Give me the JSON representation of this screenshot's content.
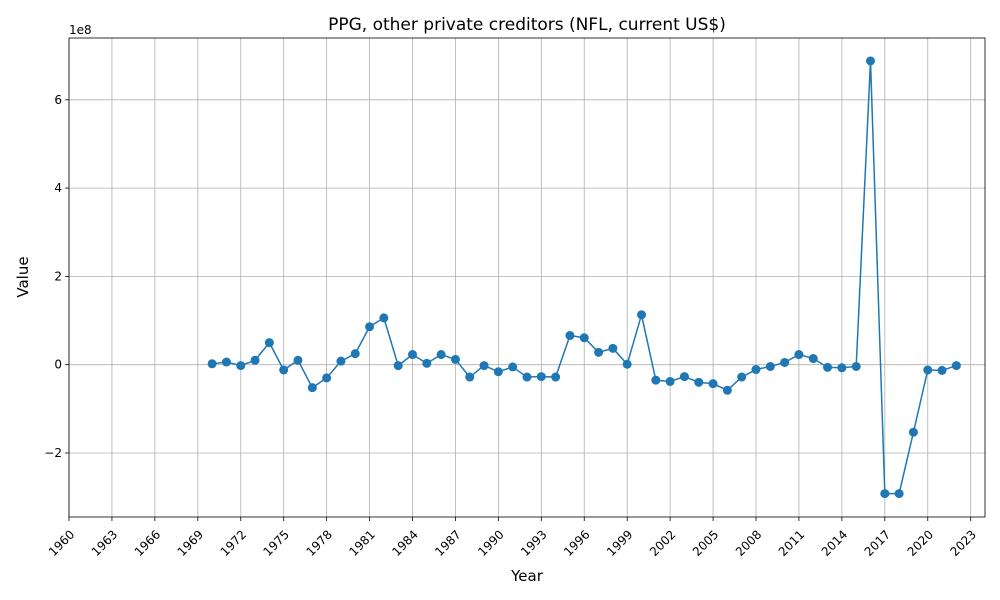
{
  "chart_data": {
    "type": "line",
    "title": "PPG, other private creditors (NFL, current US$)",
    "xlabel": "Year",
    "ylabel": "Value",
    "offset_text": "1e8",
    "xlim": [
      1960,
      2024
    ],
    "ylim": [
      -3.45,
      7.4
    ],
    "x_ticks": [
      1960,
      1963,
      1966,
      1969,
      1972,
      1975,
      1978,
      1981,
      1984,
      1987,
      1990,
      1993,
      1996,
      1999,
      2002,
      2005,
      2008,
      2011,
      2014,
      2017,
      2020,
      2023
    ],
    "y_ticks": [
      -2,
      0,
      2,
      4,
      6
    ],
    "y_tick_labels": [
      "−2",
      "0",
      "2",
      "4",
      "6"
    ],
    "grid": true,
    "marker": "circle",
    "color": "#1f77b4",
    "series": [
      {
        "x": [
          1970,
          1971,
          1972,
          1973,
          1974,
          1975,
          1976,
          1977,
          1978,
          1979,
          1980,
          1981,
          1982,
          1983,
          1984,
          1985,
          1986,
          1987,
          1988,
          1989,
          1990,
          1991,
          1992,
          1993,
          1994,
          1995,
          1996,
          1997,
          1998,
          1999,
          2000,
          2001,
          2002,
          2003,
          2004,
          2005,
          2006,
          2007,
          2008,
          2009,
          2010,
          2011,
          2012,
          2013,
          2014,
          2015,
          2016,
          2017,
          2018,
          2019,
          2020,
          2021,
          2022
        ],
        "y": [
          0.02,
          0.06,
          -0.02,
          0.1,
          0.5,
          -0.12,
          0.1,
          -0.52,
          -0.3,
          0.08,
          0.25,
          0.86,
          1.06,
          -0.02,
          0.23,
          0.03,
          0.23,
          0.12,
          -0.28,
          -0.02,
          -0.16,
          -0.05,
          -0.28,
          -0.27,
          -0.28,
          0.66,
          0.61,
          0.28,
          0.37,
          0.01,
          1.13,
          -0.35,
          -0.38,
          -0.27,
          -0.4,
          -0.43,
          -0.58,
          -0.28,
          -0.11,
          -0.04,
          0.05,
          0.23,
          0.14,
          -0.06,
          -0.07,
          -0.04,
          6.88,
          -2.92,
          -2.92,
          -1.53,
          -0.12,
          -0.13,
          -0.02
        ]
      }
    ]
  }
}
